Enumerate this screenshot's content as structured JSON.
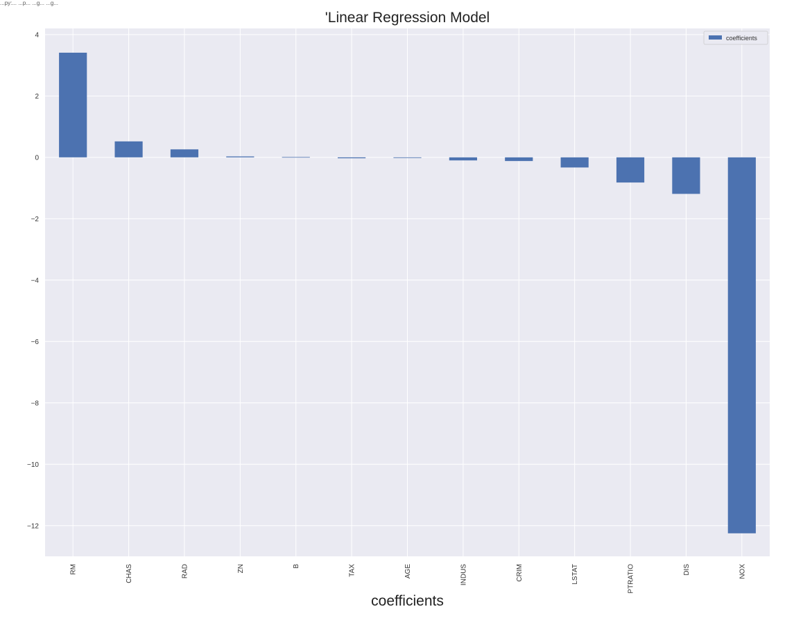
{
  "top_note": "...py:... ...p... ...g... ...g...",
  "chart_data": {
    "type": "bar",
    "title": "'Linear Regression Model",
    "xlabel": "coefficients",
    "ylabel": "",
    "categories": [
      "RM",
      "CHAS",
      "RAD",
      "ZN",
      "B",
      "TAX",
      "AGE",
      "INDUS",
      "CRIM",
      "LSTAT",
      "PTRATIO",
      "DIS",
      "NOX"
    ],
    "series": [
      {
        "name": "coefficients",
        "values": [
          3.41,
          0.52,
          0.26,
          0.03,
          0.01,
          -0.03,
          -0.02,
          -0.1,
          -0.12,
          -0.33,
          -0.82,
          -1.19,
          -12.25
        ],
        "color": "#4c72b0"
      }
    ],
    "ylim": [
      -13.0,
      4.2
    ],
    "yticks": [
      4,
      2,
      0,
      -2,
      -4,
      -6,
      -8,
      -10,
      -12
    ],
    "ytick_labels": [
      "4",
      "2",
      "0",
      "−2",
      "−4",
      "−6",
      "−8",
      "−10",
      "−12"
    ],
    "grid": true,
    "legend_position": "top-right",
    "plot_background": "#eaeaf2",
    "grid_color": "#ffffff"
  }
}
